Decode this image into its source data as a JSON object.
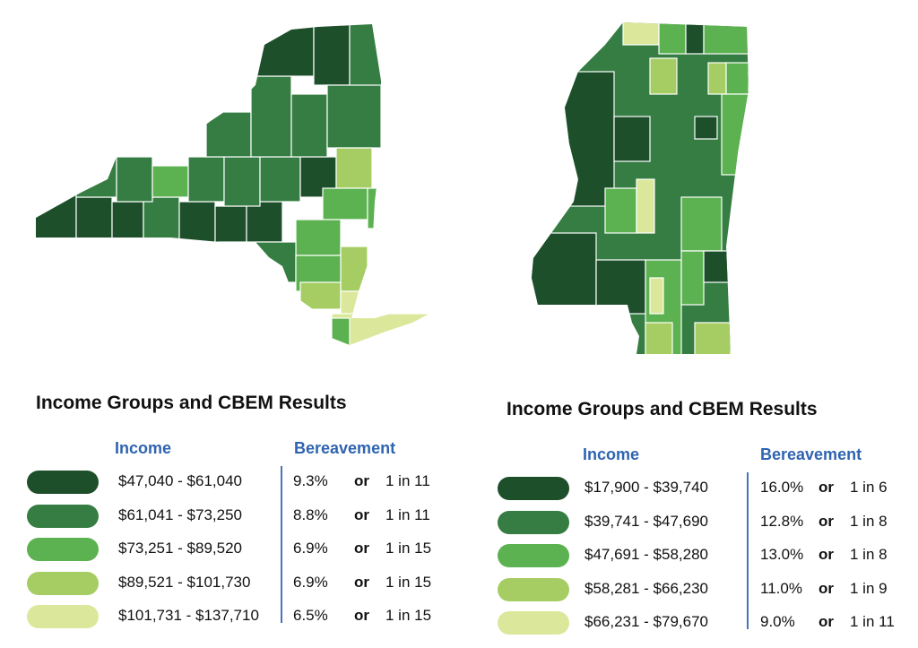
{
  "colors": {
    "bin1": "#1d4f2a",
    "bin2": "#357d42",
    "bin3": "#5cb150",
    "bin4": "#a6cd63",
    "bin5": "#dbe89c",
    "heading_blue": "#2f64b0"
  },
  "maps": {
    "ny": {
      "name": "New York"
    },
    "ms": {
      "name": "Mississippi"
    }
  },
  "legend_ny": {
    "title": "Income Groups and CBEM Results",
    "income_header": "Income",
    "bereavement_header": "Bereavement",
    "rows": [
      {
        "income": "$47,040 - $61,040",
        "pct": "9.3%",
        "or": "or",
        "ratio": "1 in 11",
        "color": "#1d4f2a"
      },
      {
        "income": "$61,041 - $73,250",
        "pct": "8.8%",
        "or": "or",
        "ratio": "1 in 11",
        "color": "#357d42"
      },
      {
        "income": "$73,251 - $89,520",
        "pct": "6.9%",
        "or": "or",
        "ratio": "1 in 15",
        "color": "#5cb150"
      },
      {
        "income": "$89,521 - $101,730",
        "pct": "6.9%",
        "or": "or",
        "ratio": "1 in 15",
        "color": "#a6cd63"
      },
      {
        "income": "$101,731 - $137,710",
        "pct": "6.5%",
        "or": "or",
        "ratio": "1 in 15",
        "color": "#dbe89c"
      }
    ]
  },
  "legend_ms": {
    "title": "Income Groups and CBEM Results",
    "income_header": "Income",
    "bereavement_header": "Bereavement",
    "rows": [
      {
        "income": "$17,900 - $39,740",
        "pct": "16.0%",
        "or": "or",
        "ratio": "1 in 6",
        "color": "#1d4f2a"
      },
      {
        "income": "$39,741 - $47,690",
        "pct": "12.8%",
        "or": "or",
        "ratio": "1 in 8",
        "color": "#357d42"
      },
      {
        "income": "$47,691 - $58,280",
        "pct": "13.0%",
        "or": "or",
        "ratio": "1 in 8",
        "color": "#5cb150"
      },
      {
        "income": "$58,281 - $66,230",
        "pct": "11.0%",
        "or": "or",
        "ratio": "1 in 9",
        "color": "#a6cd63"
      },
      {
        "income": "$66,231 - $79,670",
        "pct": "9.0%",
        "or": "or",
        "ratio": "1 in 11",
        "color": "#dbe89c"
      }
    ]
  }
}
